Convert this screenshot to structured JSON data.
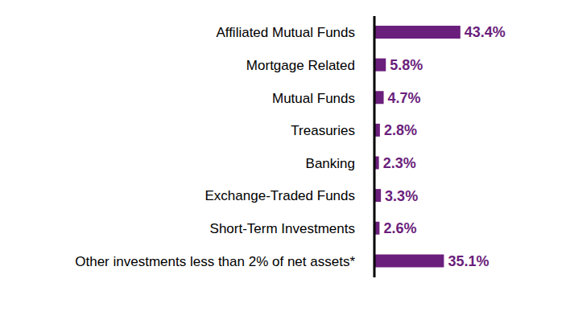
{
  "chart_data": {
    "type": "bar",
    "orientation": "horizontal",
    "categories": [
      "Affiliated Mutual Funds",
      "Mortgage Related",
      "Mutual Funds",
      "Treasuries",
      "Banking",
      "Exchange-Traded Funds",
      "Short-Term Investments",
      "Other investments less than 2% of net assets*"
    ],
    "values": [
      43.4,
      5.8,
      4.7,
      2.8,
      2.3,
      3.3,
      2.6,
      35.1
    ],
    "value_labels": [
      "43.4%",
      "5.8%",
      "4.7%",
      "2.8%",
      "2.3%",
      "3.3%",
      "2.6%",
      "35.1%"
    ],
    "color": "#6b1f7c",
    "xlim": [
      0,
      78
    ],
    "data_labels": true,
    "tick_labels": "y",
    "grid": false
  }
}
